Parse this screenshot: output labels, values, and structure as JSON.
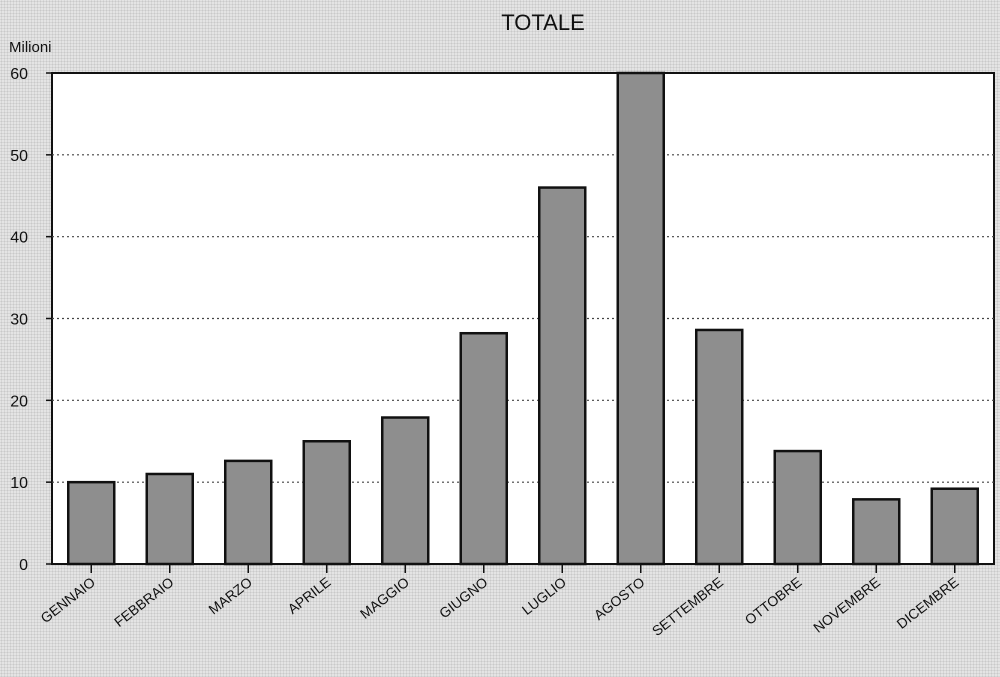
{
  "chart_data": {
    "type": "bar",
    "title": "TOTALE",
    "ylabel": "Milioni",
    "xlabel": "",
    "ylim": [
      0,
      60
    ],
    "yticks": [
      0,
      10,
      20,
      30,
      40,
      50,
      60
    ],
    "grid": true,
    "categories": [
      "GENNAIO",
      "FEBBRAIO",
      "MARZO",
      "APRILE",
      "MAGGIO",
      "GIUGNO",
      "LUGLIO",
      "AGOSTO",
      "SETTEMBRE",
      "OTTOBRE",
      "NOVEMBRE",
      "DICEMBRE"
    ],
    "values": [
      10,
      11,
      12.6,
      15,
      17.9,
      28.2,
      46,
      60,
      28.6,
      13.8,
      7.9,
      9.2
    ],
    "colors": {
      "bar": "#8e8e8e",
      "bar_stroke": "#111111",
      "plot_bg": "#ffffff",
      "grid": "#444444"
    }
  }
}
